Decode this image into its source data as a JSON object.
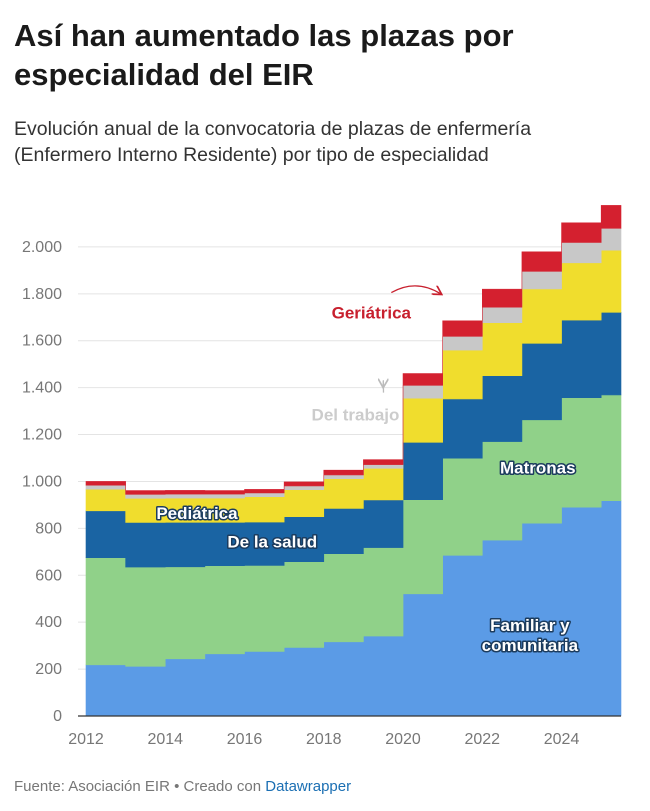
{
  "header": {
    "title": "Así han aumentado las plazas por especialidad del EIR",
    "subtitle": "Evolución anual de la convocatoria de plazas de enfermería (Enfermero Interno Residente) por tipo de especialidad"
  },
  "footer": {
    "source_text": "Fuente: Asociación EIR • Creado con",
    "tool_link": "Datawrapper"
  },
  "chart_data": {
    "type": "area",
    "stacked": true,
    "step": true,
    "x": [
      2012,
      2013,
      2014,
      2015,
      2016,
      2017,
      2018,
      2019,
      2020,
      2021,
      2022,
      2023,
      2024,
      2025
    ],
    "series": [
      {
        "name": "Familiar y comunitaria",
        "color": "#5b9be6",
        "label_color": "#ffffff",
        "values": [
          218,
          212,
          244,
          265,
          275,
          292,
          316,
          341,
          521,
          685,
          750,
          822,
          890,
          918
        ]
      },
      {
        "name": "Matronas",
        "color": "#90d189",
        "label_color": "#ffffff",
        "values": [
          457,
          423,
          392,
          376,
          367,
          366,
          376,
          377,
          401,
          414,
          420,
          441,
          467,
          451
        ]
      },
      {
        "name": "De la salud",
        "color": "#1a64a3",
        "label_color": "#ffffff",
        "values": [
          200,
          190,
          190,
          185,
          185,
          192,
          193,
          203,
          245,
          253,
          281,
          326,
          331,
          352
        ]
      },
      {
        "name": "Pediátrica",
        "color": "#f0dd2d",
        "label_color": "#ffffff",
        "values": [
          92,
          103,
          103,
          103,
          108,
          115,
          127,
          135,
          188,
          208,
          226,
          232,
          244,
          265
        ]
      },
      {
        "name": "Del trabajo",
        "color": "#c8c8c8",
        "label_color": "#cccccc",
        "values": [
          17,
          17,
          17,
          17,
          16,
          16,
          16,
          16,
          55,
          59,
          66,
          75,
          87,
          93
        ]
      },
      {
        "name": "Geriátrica",
        "color": "#d4202f",
        "label_color": "#c8202e",
        "values": [
          16,
          16,
          16,
          15,
          15,
          17,
          20,
          21,
          50,
          66,
          77,
          83,
          84,
          98
        ]
      }
    ],
    "y_ticks": [
      0,
      200,
      400,
      600,
      800,
      1000,
      1200,
      1400,
      1600,
      1800,
      2000
    ],
    "y_tick_labels": [
      "0",
      "200",
      "400",
      "600",
      "800",
      "1.000",
      "1.200",
      "1.400",
      "1.600",
      "1.800",
      "2.000"
    ],
    "x_ticks": [
      2012,
      2014,
      2016,
      2018,
      2020,
      2022,
      2024
    ],
    "x_tick_labels": [
      "2012",
      "2014",
      "2016",
      "2018",
      "2020",
      "2022",
      "2024"
    ],
    "ylim": [
      0,
      2200
    ],
    "xlim": [
      2012,
      2025.5
    ],
    "grid": true,
    "annotations": [
      {
        "series": "Familiar y comunitaria",
        "lines": [
          "Familiar y",
          "comunitaria"
        ],
        "anchor_year": 2023.2,
        "anchor_value": 345
      },
      {
        "series": "Matronas",
        "lines": [
          "Matronas"
        ],
        "anchor_year": 2023.4,
        "anchor_value": 1060
      },
      {
        "series": "De la salud",
        "lines": [
          "De la salud"
        ],
        "anchor_year": 2016.7,
        "anchor_value": 745
      },
      {
        "series": "Pediátrica",
        "lines": [
          "Pediátrica"
        ],
        "anchor_year": 2014.8,
        "anchor_value": 865
      },
      {
        "series": "Del trabajo",
        "lines": [
          "Del trabajo"
        ],
        "anchor_year": 2018.8,
        "anchor_value": 1285,
        "arrow_to_year": 2019.6,
        "arrow_to_value": 1405
      },
      {
        "series": "Geriátrica",
        "lines": [
          "Geriátrica"
        ],
        "anchor_year": 2019.2,
        "anchor_value": 1720,
        "arrow_to_year": 2021.05,
        "arrow_to_value": 1800
      }
    ]
  }
}
